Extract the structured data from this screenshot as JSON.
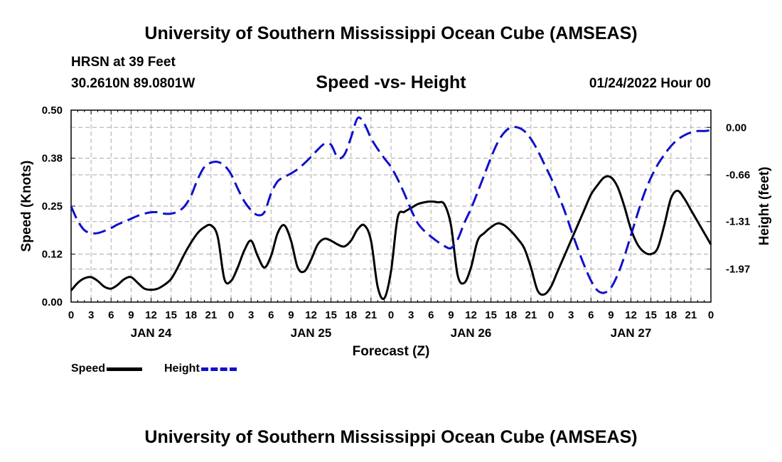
{
  "header": {
    "title": "University of Southern Mississippi Ocean Cube (AMSEAS)",
    "station": "HRSN at 39 Feet",
    "coords": "30.2610N  89.0801W",
    "chart_title": "Speed -vs- Height",
    "datetime": "01/24/2022 Hour 00"
  },
  "footer": {
    "title": "University of Southern Mississippi Ocean Cube (AMSEAS)"
  },
  "legend": {
    "speed": "Speed",
    "height": "Height"
  },
  "colors": {
    "speed": "#000000",
    "height": "#1010cc",
    "grid": "#aaaaaa"
  },
  "chart_data": {
    "type": "line",
    "title": "Speed -vs- Height",
    "xlabel": "Forecast (Z)",
    "ylabel": "Speed (Knots)",
    "ylabel_right": "Height (feet)",
    "x_range_hours": [
      0,
      96
    ],
    "x_tick_labels": [
      "0",
      "3",
      "6",
      "9",
      "12",
      "15",
      "18",
      "21",
      "0",
      "3",
      "6",
      "9",
      "12",
      "15",
      "18",
      "21",
      "0",
      "3",
      "6",
      "9",
      "12",
      "15",
      "18",
      "21",
      "0",
      "3",
      "6",
      "9",
      "12",
      "15",
      "18",
      "21",
      "0"
    ],
    "day_labels": [
      {
        "hour": 12,
        "label": "JAN 24"
      },
      {
        "hour": 36,
        "label": "JAN 25"
      },
      {
        "hour": 60,
        "label": "JAN 26"
      },
      {
        "hour": 84,
        "label": "JAN 27"
      }
    ],
    "ylim_left": [
      0,
      0.5
    ],
    "yticks_left": [
      0,
      0.125,
      0.25,
      0.375,
      0.5
    ],
    "ytick_labels_left": [
      "0.00",
      "0.12",
      "0.25",
      "0.38",
      "0.50"
    ],
    "ylim_right": [
      -2.43,
      0.24
    ],
    "yticks_right": [
      0.0,
      -0.66,
      -1.31,
      -1.97
    ],
    "ytick_labels_right": [
      "0.00",
      "-0.66",
      "-1.31",
      "-1.97"
    ],
    "series": [
      {
        "name": "Speed",
        "axis": "left",
        "x": [
          0,
          1,
          2,
          3,
          4,
          5,
          6,
          7,
          8,
          9,
          10,
          11,
          12,
          13,
          14,
          15,
          16,
          17,
          18,
          19,
          20,
          21,
          22,
          23,
          24,
          25,
          26,
          27,
          28,
          29,
          30,
          31,
          32,
          33,
          34,
          35,
          36,
          37,
          38,
          39,
          40,
          41,
          42,
          43,
          44,
          45,
          46,
          47,
          48,
          49,
          50,
          51,
          52,
          53,
          54,
          55,
          56,
          57,
          58,
          59,
          60,
          61,
          62,
          63,
          64,
          65,
          66,
          67,
          68,
          69,
          70,
          71,
          72,
          73,
          74,
          75,
          76,
          77,
          78,
          79,
          80,
          81,
          82,
          83,
          84,
          85,
          86,
          87,
          88,
          89,
          90,
          91,
          92,
          93,
          94,
          95,
          96
        ],
        "values": [
          0.03,
          0.05,
          0.062,
          0.065,
          0.055,
          0.04,
          0.035,
          0.045,
          0.06,
          0.065,
          0.05,
          0.035,
          0.032,
          0.035,
          0.045,
          0.06,
          0.09,
          0.125,
          0.155,
          0.18,
          0.195,
          0.2,
          0.17,
          0.06,
          0.055,
          0.09,
          0.135,
          0.16,
          0.12,
          0.09,
          0.12,
          0.18,
          0.2,
          0.16,
          0.09,
          0.08,
          0.11,
          0.15,
          0.165,
          0.16,
          0.15,
          0.145,
          0.16,
          0.19,
          0.2,
          0.16,
          0.04,
          0.01,
          0.08,
          0.22,
          0.235,
          0.245,
          0.255,
          0.26,
          0.262,
          0.26,
          0.255,
          0.2,
          0.07,
          0.05,
          0.09,
          0.16,
          0.18,
          0.195,
          0.205,
          0.2,
          0.185,
          0.165,
          0.14,
          0.09,
          0.03,
          0.02,
          0.04,
          0.08,
          0.12,
          0.16,
          0.2,
          0.24,
          0.28,
          0.305,
          0.325,
          0.325,
          0.3,
          0.25,
          0.19,
          0.15,
          0.13,
          0.125,
          0.14,
          0.2,
          0.27,
          0.29,
          0.27,
          0.24,
          0.21,
          0.18,
          0.15
        ]
      },
      {
        "name": "Height",
        "axis": "right",
        "x": [
          0,
          1,
          2,
          3,
          4,
          5,
          6,
          7,
          8,
          9,
          10,
          11,
          12,
          13,
          14,
          15,
          16,
          17,
          18,
          19,
          20,
          21,
          22,
          23,
          24,
          25,
          26,
          27,
          28,
          29,
          30,
          31,
          32,
          33,
          34,
          35,
          36,
          37,
          38,
          39,
          40,
          41,
          42,
          43,
          44,
          45,
          46,
          47,
          48,
          49,
          50,
          51,
          52,
          53,
          54,
          55,
          56,
          57,
          58,
          59,
          60,
          61,
          62,
          63,
          64,
          65,
          66,
          67,
          68,
          69,
          70,
          71,
          72,
          73,
          74,
          75,
          76,
          77,
          78,
          79,
          80,
          81,
          82,
          83,
          84,
          85,
          86,
          87,
          88,
          89,
          90,
          91,
          92,
          93,
          94,
          95,
          96
        ],
        "values": [
          -1.1,
          -1.3,
          -1.43,
          -1.47,
          -1.47,
          -1.44,
          -1.4,
          -1.35,
          -1.31,
          -1.27,
          -1.23,
          -1.2,
          -1.18,
          -1.18,
          -1.2,
          -1.2,
          -1.17,
          -1.1,
          -0.95,
          -0.72,
          -0.55,
          -0.49,
          -0.48,
          -0.53,
          -0.65,
          -0.85,
          -1.03,
          -1.15,
          -1.22,
          -1.18,
          -0.92,
          -0.75,
          -0.69,
          -0.64,
          -0.58,
          -0.5,
          -0.41,
          -0.31,
          -0.23,
          -0.24,
          -0.42,
          -0.38,
          -0.14,
          0.13,
          0.05,
          -0.15,
          -0.3,
          -0.43,
          -0.55,
          -0.72,
          -0.92,
          -1.14,
          -1.33,
          -1.44,
          -1.52,
          -1.59,
          -1.65,
          -1.68,
          -1.56,
          -1.33,
          -1.13,
          -0.9,
          -0.66,
          -0.42,
          -0.21,
          -0.07,
          0.0,
          0.0,
          -0.05,
          -0.16,
          -0.32,
          -0.51,
          -0.7,
          -0.92,
          -1.15,
          -1.42,
          -1.68,
          -1.92,
          -2.13,
          -2.27,
          -2.3,
          -2.23,
          -2.05,
          -1.8,
          -1.5,
          -1.2,
          -0.92,
          -0.7,
          -0.52,
          -0.38,
          -0.26,
          -0.17,
          -0.11,
          -0.07,
          -0.05,
          -0.05,
          -0.04
        ]
      }
    ]
  }
}
